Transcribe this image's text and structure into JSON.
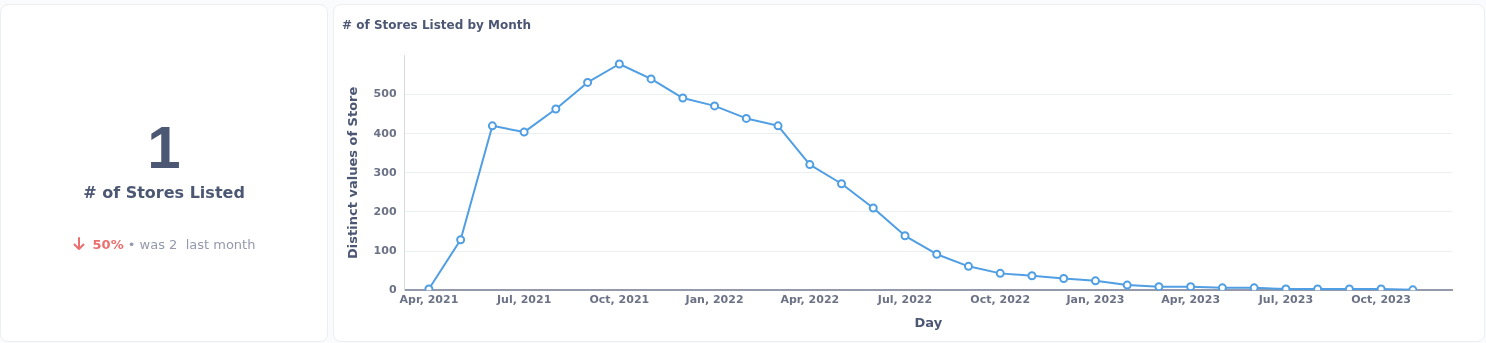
{
  "chart_data": [
    {
      "type": "other",
      "title": "# of Stores Listed",
      "annotations": [
        "1",
        "50%",
        "• was 2  last month"
      ]
    },
    {
      "type": "line",
      "title": "# of Stores Listed by Month",
      "xlabel": "Day",
      "ylabel": "Distinct values of Store",
      "x": [
        "2021-04",
        "2021-05",
        "2021-06",
        "2021-07",
        "2021-08",
        "2021-09",
        "2021-10",
        "2021-11",
        "2021-12",
        "2022-01",
        "2022-02",
        "2022-03",
        "2022-04",
        "2022-05",
        "2022-06",
        "2022-07",
        "2022-08",
        "2022-09",
        "2022-10",
        "2022-11",
        "2022-12",
        "2023-01",
        "2023-02",
        "2023-03",
        "2023-04",
        "2023-05",
        "2023-06",
        "2023-07",
        "2023-08",
        "2023-09",
        "2023-10",
        "2023-11"
      ],
      "series": [
        {
          "color": "#509ee3",
          "values": [
            3,
            129,
            420,
            404,
            463,
            531,
            578,
            540,
            491,
            471,
            439,
            420,
            321,
            272,
            210,
            139,
            92,
            61,
            43,
            37,
            30,
            24,
            13,
            9,
            9,
            6,
            6,
            3,
            3,
            3,
            3,
            1
          ]
        }
      ],
      "xlim": [
        "2021-03-08",
        "2023-12-08"
      ],
      "xticks": [
        {
          "value": "2021-04",
          "label": "Apr, 2021"
        },
        {
          "value": "2021-07",
          "label": "Jul, 2021"
        },
        {
          "value": "2021-10",
          "label": "Oct, 2021"
        },
        {
          "value": "2022-01",
          "label": "Jan, 2022"
        },
        {
          "value": "2022-04",
          "label": "Apr, 2022"
        },
        {
          "value": "2022-07",
          "label": "Jul, 2022"
        },
        {
          "value": "2022-10",
          "label": "Oct, 2022"
        },
        {
          "value": "2023-01",
          "label": "Jan, 2023"
        },
        {
          "value": "2023-04",
          "label": "Apr, 2023"
        },
        {
          "value": "2023-07",
          "label": "Jul, 2023"
        },
        {
          "value": "2023-10",
          "label": "Oct, 2023"
        }
      ],
      "ylim": [
        0,
        600
      ],
      "yticks": [
        0,
        100,
        200,
        300,
        400,
        500
      ],
      "grid": "y",
      "legend": false,
      "marker": "circle",
      "line_style": "solid"
    }
  ]
}
